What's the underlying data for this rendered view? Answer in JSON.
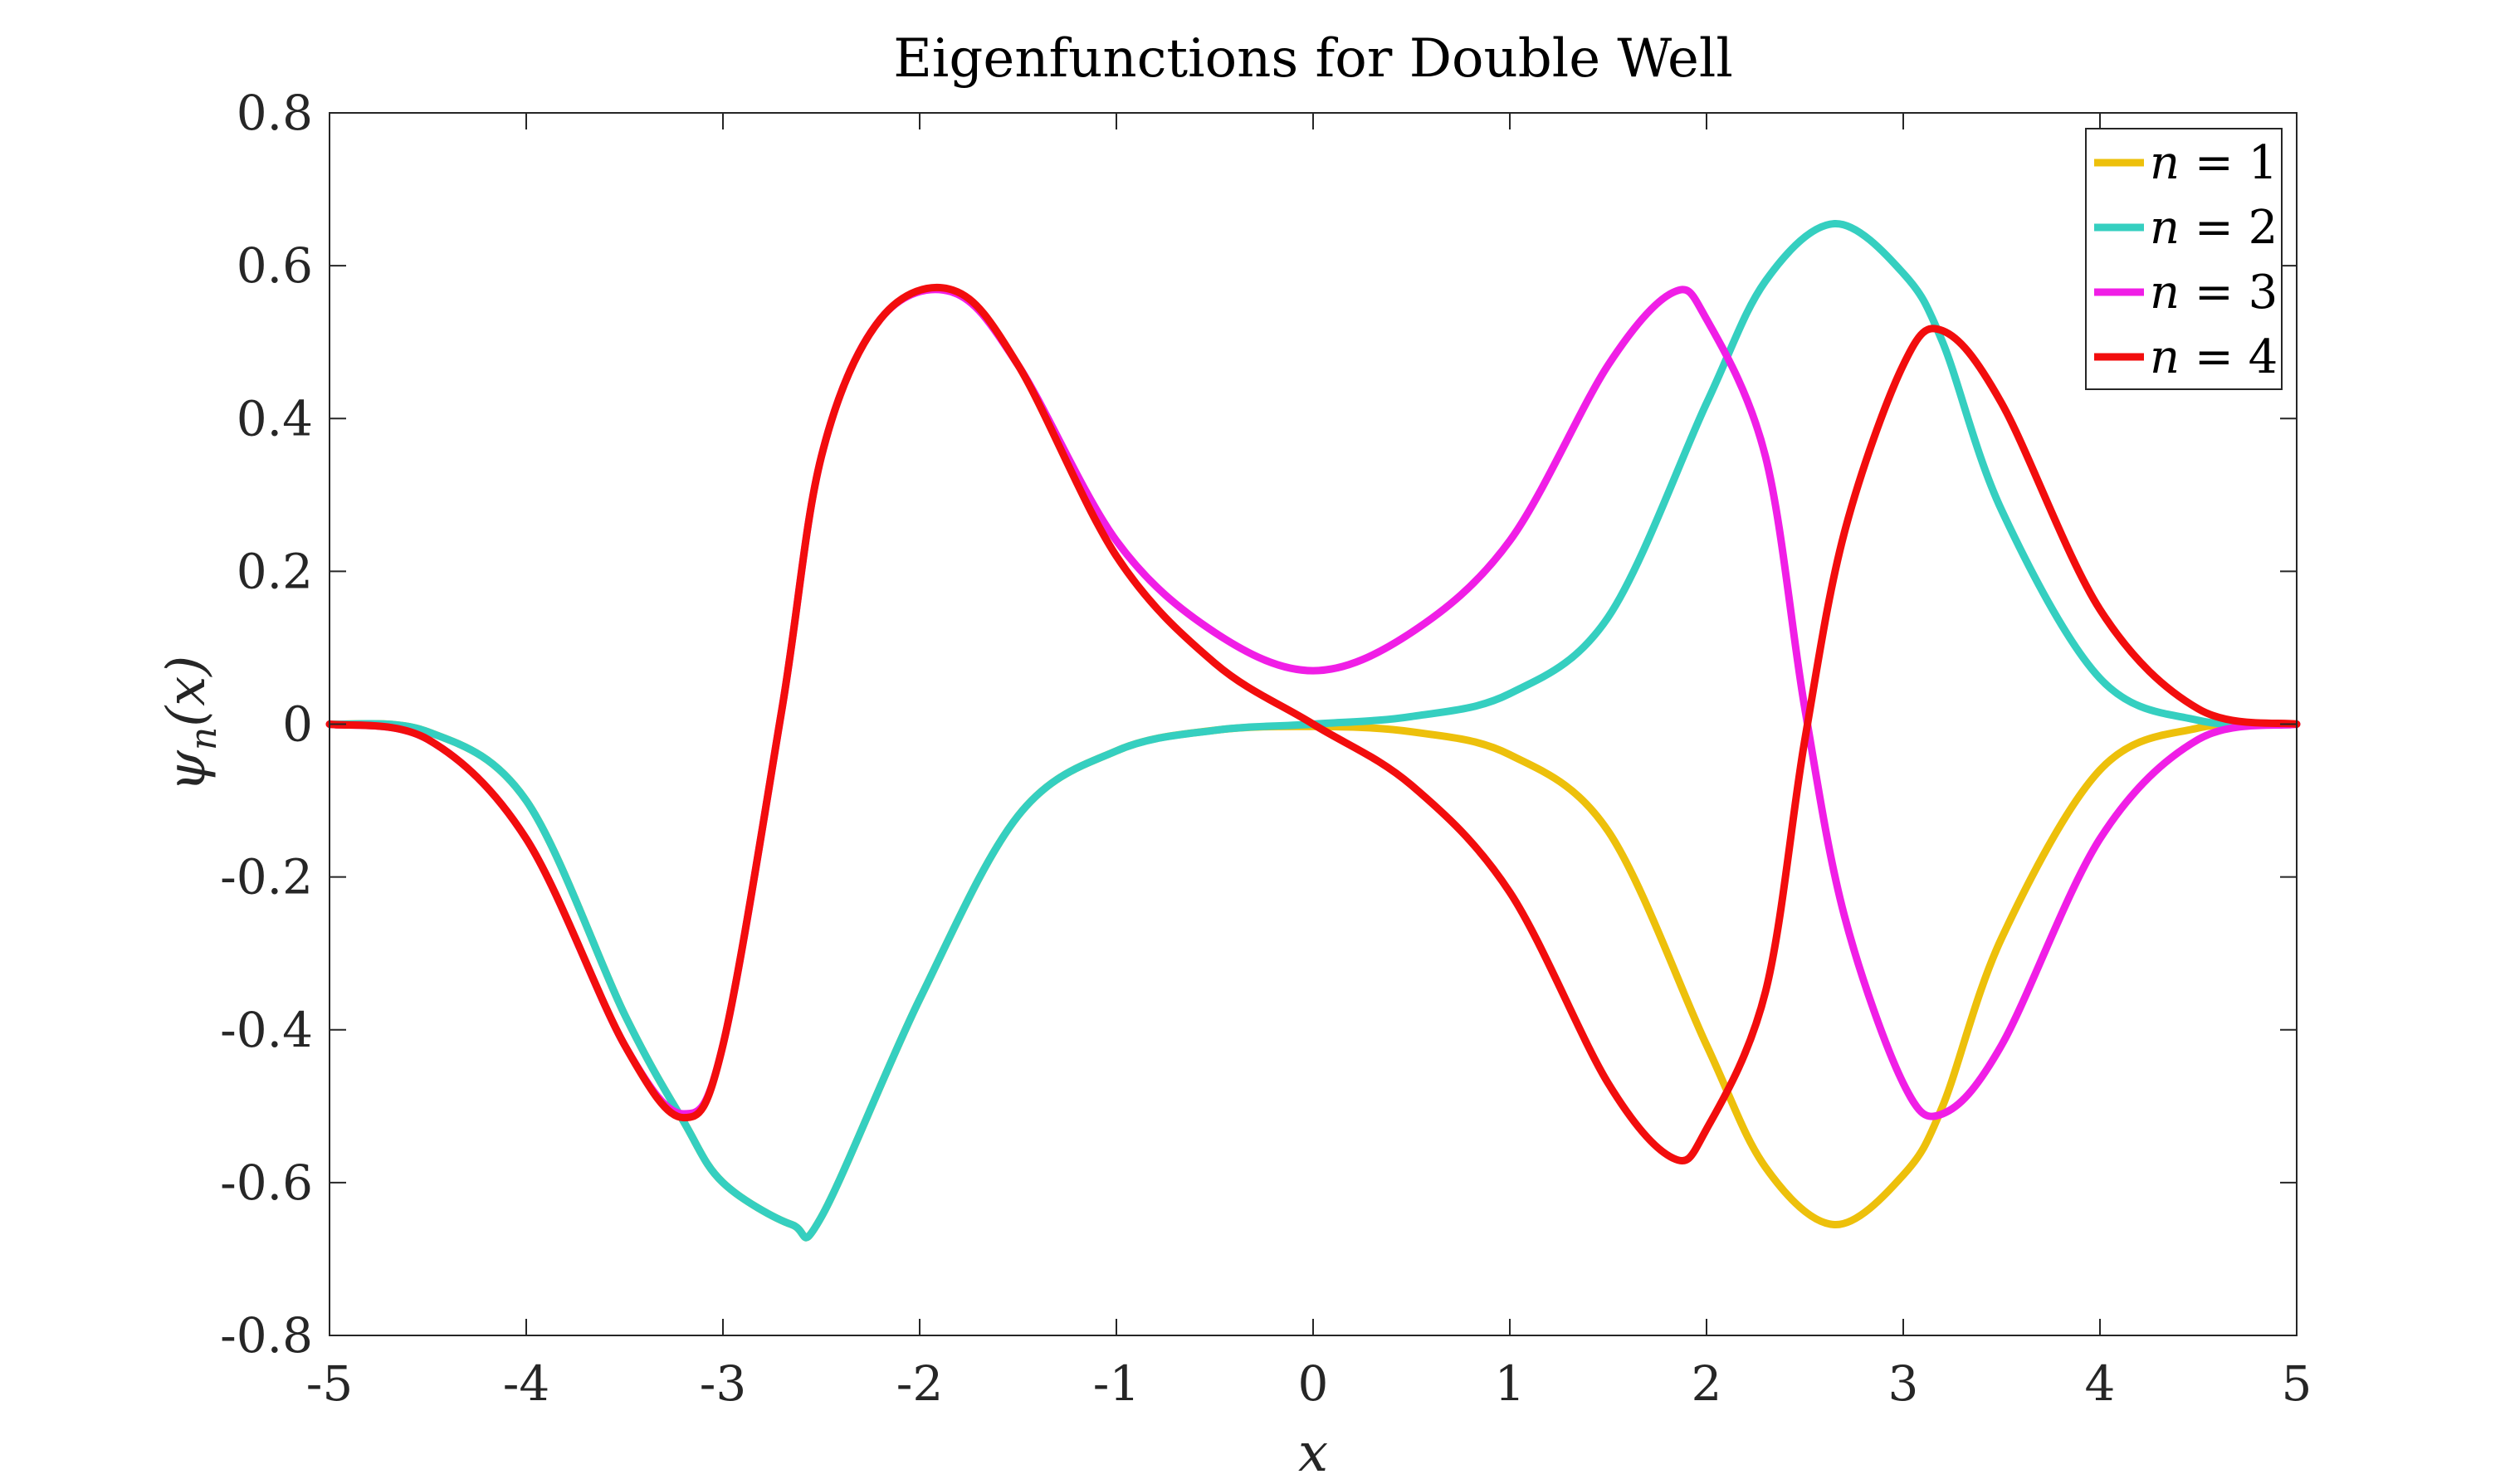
{
  "chart_data": {
    "type": "line",
    "title": "Eigenfunctions for Double Well",
    "xlabel": "x",
    "ylabel": "ψ_n(x)",
    "xlim": [
      -5,
      5
    ],
    "ylim": [
      -0.8,
      0.8
    ],
    "x_ticks": [
      "-5",
      "-4",
      "-3",
      "-2",
      "-1",
      "0",
      "1",
      "2",
      "3",
      "4",
      "5"
    ],
    "y_ticks": [
      "0.8",
      "0.6",
      "0.4",
      "0.2",
      "0",
      "-0.2",
      "-0.4",
      "-0.6",
      "-0.8"
    ],
    "grid": false,
    "legend_position": "top-right",
    "series": [
      {
        "name": "n = 1",
        "color": "#EDC00B",
        "x": [
          -5,
          -4.5,
          -4,
          -3.5,
          -3.2,
          -3,
          -2.65,
          -2.5,
          -2,
          -1.5,
          -1,
          -0.5,
          0,
          0.5,
          1,
          1.5,
          2,
          2.3,
          2.65,
          3,
          3.2,
          3.5,
          4,
          4.5,
          5
        ],
        "y": [
          0,
          -0.01,
          -0.1,
          -0.38,
          -0.52,
          -0.6,
          -0.655,
          -0.645,
          -0.36,
          -0.12,
          -0.035,
          -0.008,
          -0.003,
          -0.01,
          -0.04,
          -0.14,
          -0.42,
          -0.58,
          -0.655,
          -0.59,
          -0.5,
          -0.28,
          -0.06,
          -0.005,
          0
        ]
      },
      {
        "name": "n = 2",
        "color": "#35CFC0",
        "x": [
          -5,
          -4.5,
          -4,
          -3.5,
          -3.2,
          -3,
          -2.65,
          -2.5,
          -2,
          -1.5,
          -1,
          -0.5,
          0,
          0.5,
          1,
          1.5,
          2,
          2.3,
          2.65,
          3,
          3.2,
          3.5,
          4,
          4.5,
          5
        ],
        "y": [
          0,
          -0.01,
          -0.1,
          -0.38,
          -0.52,
          -0.6,
          -0.655,
          -0.645,
          -0.36,
          -0.12,
          -0.035,
          -0.008,
          0,
          0.01,
          0.04,
          0.14,
          0.42,
          0.58,
          0.655,
          0.59,
          0.5,
          0.28,
          0.06,
          0.005,
          0
        ]
      },
      {
        "name": "n = 3",
        "color": "#F01EE6",
        "x": [
          -5,
          -4.5,
          -4,
          -3.5,
          -3.2,
          -3,
          -2.7,
          -2.5,
          -2.2,
          -1.83,
          -1.5,
          -1,
          -0.5,
          0,
          0.5,
          1,
          1.5,
          1.83,
          2,
          2.3,
          2.5,
          2.7,
          3,
          3.2,
          3.5,
          4,
          4.5,
          5
        ],
        "y": [
          0,
          -0.02,
          -0.15,
          -0.42,
          -0.51,
          -0.42,
          0.02,
          0.35,
          0.53,
          0.565,
          0.47,
          0.24,
          0.12,
          0.07,
          0.12,
          0.24,
          0.47,
          0.565,
          0.53,
          0.35,
          0.02,
          -0.25,
          -0.47,
          -0.51,
          -0.42,
          -0.15,
          -0.02,
          0
        ]
      },
      {
        "name": "n = 4",
        "color": "#F20D0D",
        "x": [
          -5,
          -4.5,
          -4,
          -3.5,
          -3.2,
          -3,
          -2.7,
          -2.5,
          -2.2,
          -1.83,
          -1.5,
          -1,
          -0.5,
          0,
          0.5,
          1,
          1.5,
          1.83,
          2,
          2.3,
          2.5,
          2.7,
          3,
          3.2,
          3.5,
          4,
          4.5,
          5
        ],
        "y": [
          0,
          -0.02,
          -0.15,
          -0.42,
          -0.515,
          -0.42,
          0.02,
          0.35,
          0.53,
          0.568,
          0.47,
          0.22,
          0.08,
          0,
          -0.08,
          -0.22,
          -0.47,
          -0.568,
          -0.53,
          -0.35,
          -0.02,
          0.25,
          0.47,
          0.515,
          0.42,
          0.15,
          0.02,
          0
        ]
      }
    ]
  }
}
